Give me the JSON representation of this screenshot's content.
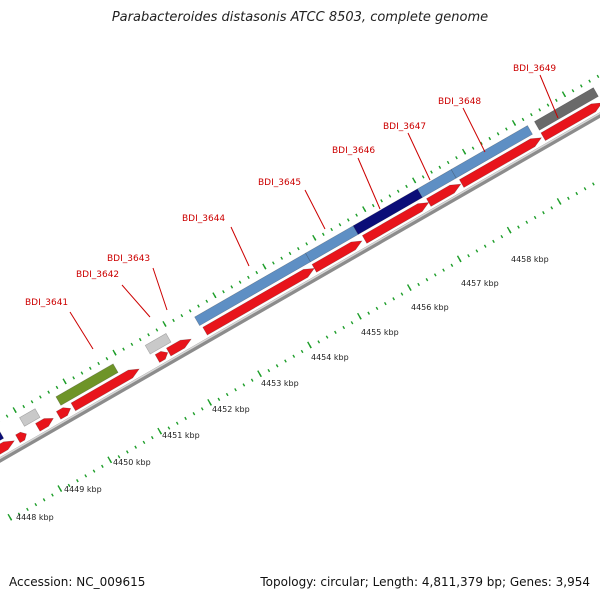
{
  "title": "Parabacteroides distasonis ATCC 8503, complete genome",
  "footer": {
    "accession": "Accession: NC_009615",
    "topology": "Topology: circular; Length: 4,811,379 bp; Genes: 3,954"
  },
  "colors": {
    "cds_red": "#e8141b",
    "steel_blue": "#5e8fc4",
    "navy": "#0b0d78",
    "olive": "#6e9428",
    "light_gray": "#c9c9c9",
    "dark_gray": "#6a6a6a",
    "tick_green": "#1e9e2a",
    "label_red": "#cc0000",
    "backbone_gray": "#8c8c8c"
  },
  "genome": {
    "kbp_labels": [
      "4448 kbp",
      "4449 kbp",
      "4450 kbp",
      "4451 kbp",
      "4452 kbp",
      "4453 kbp",
      "4454 kbp",
      "4455 kbp",
      "4456 kbp",
      "4457 kbp",
      "4458 kbp"
    ],
    "gene_labels": [
      "BDI_3641",
      "BDI_3642",
      "BDI_3643",
      "BDI_3644",
      "BDI_3645",
      "BDI_3646",
      "BDI_3647",
      "BDI_3648",
      "BDI_3649"
    ]
  }
}
